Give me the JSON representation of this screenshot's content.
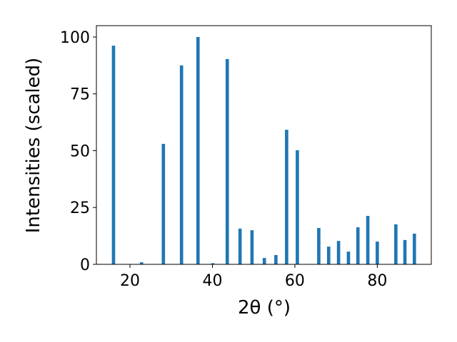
{
  "chart_data": {
    "type": "bar",
    "x_label": "2θ (°)",
    "y_label": "Intensities (scaled)",
    "x": [
      16.0,
      22.8,
      28.1,
      32.5,
      36.5,
      40.1,
      43.6,
      46.7,
      49.6,
      52.6,
      55.4,
      58.0,
      60.6,
      65.8,
      68.2,
      70.6,
      73.0,
      75.3,
      77.7,
      80.0,
      84.5,
      86.7,
      89.0
    ],
    "values": [
      96.2,
      0.9,
      53,
      87.5,
      100,
      0.5,
      90.3,
      15.7,
      15.0,
      2.8,
      4.1,
      59.2,
      50.2,
      16.0,
      7.8,
      10.3,
      5.6,
      16.3,
      21.3,
      10.0,
      17.6,
      10.7,
      13.5
    ],
    "color": "#1f77b4",
    "xlim": [
      11.85,
      93.1
    ],
    "xticks": [
      20,
      40,
      60,
      80
    ],
    "ylim": [
      0,
      105
    ],
    "yticks": [
      0,
      25,
      50,
      75,
      100
    ]
  }
}
